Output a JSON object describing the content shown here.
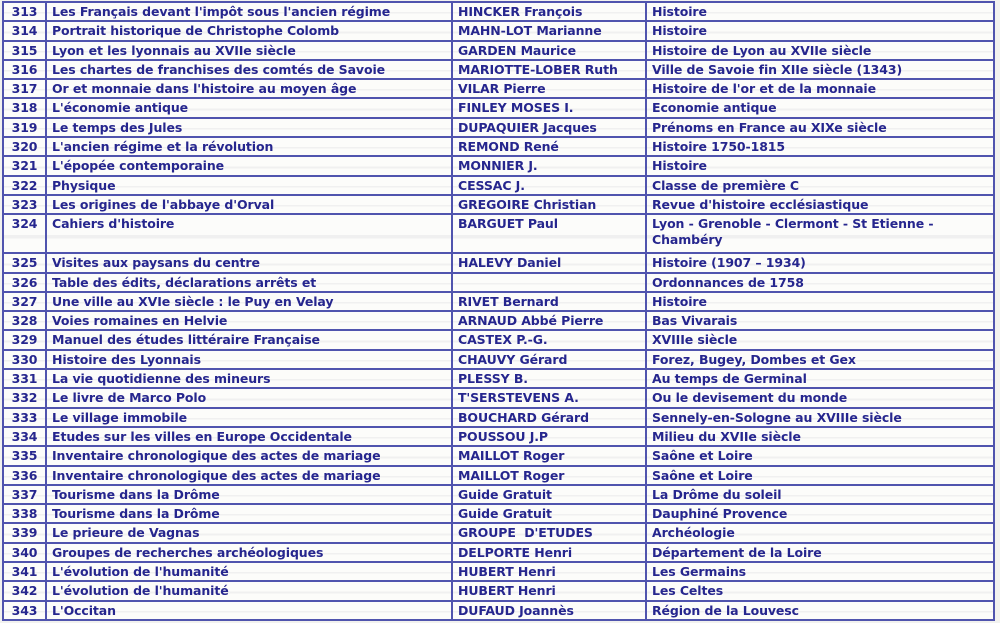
{
  "document": {
    "kind_label": "scanned catalog table",
    "colors": {
      "text": "#26268e",
      "grid": "#5054ae",
      "paper": "#fcfcfa",
      "page_background": "#f2f2ef"
    }
  },
  "table": {
    "rows": [
      {
        "num": "313",
        "title": "Les Français devant l'impôt sous l'ancien régime",
        "author": "HINCKER François",
        "subject": "Histoire",
        "tall": false
      },
      {
        "num": "314",
        "title": "Portrait historique de Christophe Colomb",
        "author": "MAHN-LOT Marianne",
        "subject": "Histoire",
        "tall": false
      },
      {
        "num": "315",
        "title": "Lyon et les lyonnais au XVIIe siècle",
        "author": "GARDEN Maurice",
        "subject": "Histoire de Lyon au XVIIe siècle",
        "tall": false
      },
      {
        "num": "316",
        "title": "Les chartes de franchises des comtés de Savoie",
        "author": "MARIOTTE-LOBER Ruth",
        "subject": "Ville de Savoie fin XIIe siècle (1343)",
        "tall": false
      },
      {
        "num": "317",
        "title": "Or et monnaie dans l'histoire au moyen âge",
        "author": "VILAR Pierre",
        "subject": "Histoire de l'or et de la monnaie",
        "tall": false
      },
      {
        "num": "318",
        "title": "L'économie antique",
        "author": "FINLEY MOSES I.",
        "subject": "Economie antique",
        "tall": false
      },
      {
        "num": "319",
        "title": "Le temps des Jules",
        "author": "DUPAQUIER Jacques",
        "subject": "Prénoms en France au XIXe siècle",
        "tall": false
      },
      {
        "num": "320",
        "title": "L'ancien régime et la révolution",
        "author": "REMOND René",
        "subject": "Histoire 1750-1815",
        "tall": false
      },
      {
        "num": "321",
        "title": "L'épopée contemporaine",
        "author": "MONNIER J.",
        "subject": "Histoire",
        "tall": false
      },
      {
        "num": "322",
        "title": "Physique",
        "author": "CESSAC J.",
        "subject": "Classe de première C",
        "tall": false
      },
      {
        "num": "323",
        "title": "Les origines de l'abbaye d'Orval",
        "author": "GREGOIRE Christian",
        "subject": "Revue d'histoire ecclésiastique",
        "tall": false
      },
      {
        "num": "324",
        "title": "Cahiers d'histoire",
        "author": "BARGUET Paul",
        "subject": "Lyon - Grenoble - Clermont - St Etienne -\nChambéry",
        "tall": true
      },
      {
        "num": "325",
        "title": "Visites aux paysans du centre",
        "author": "HALEVY Daniel",
        "subject": "Histoire (1907 – 1934)",
        "tall": false
      },
      {
        "num": "326",
        "title": "Table des édits, déclarations arrêts et",
        "author": "",
        "subject": "Ordonnances de 1758",
        "tall": false
      },
      {
        "num": "327",
        "title": "Une ville au XVIe siècle : le Puy en Velay",
        "author": "RIVET Bernard",
        "subject": "Histoire",
        "tall": false
      },
      {
        "num": "328",
        "title": "Voies romaines en Helvie",
        "author": "ARNAUD Abbé Pierre",
        "subject": "Bas Vivarais",
        "tall": false
      },
      {
        "num": "329",
        "title": "Manuel des études littéraire Française",
        "author": "CASTEX P.-G.",
        "subject": "XVIIIe siècle",
        "tall": false
      },
      {
        "num": "330",
        "title": "Histoire des Lyonnais",
        "author": "CHAUVY Gérard",
        "subject": "Forez, Bugey, Dombes et Gex",
        "tall": false
      },
      {
        "num": "331",
        "title": "La vie quotidienne des mineurs",
        "author": "PLESSY B.",
        "subject": "Au temps de Germinal",
        "tall": false
      },
      {
        "num": "332",
        "title": "Le livre de Marco Polo",
        "author": "T'SERSTEVENS A.",
        "subject": "Ou le devisement du monde",
        "tall": false
      },
      {
        "num": "333",
        "title": "Le village immobile",
        "author": "BOUCHARD Gérard",
        "subject": "Sennely-en-Sologne au XVIIIe siècle",
        "tall": false
      },
      {
        "num": "334",
        "title": "Etudes sur les villes en Europe Occidentale",
        "author": "POUSSOU J.P",
        "subject": "Milieu du XVIIe siècle",
        "tall": false
      },
      {
        "num": "335",
        "title": "Inventaire chronologique des actes de mariage",
        "author": "MAILLOT Roger",
        "subject": "Saône et Loire",
        "tall": false
      },
      {
        "num": "336",
        "title": "Inventaire chronologique des actes de mariage",
        "author": "MAILLOT Roger",
        "subject": "Saône et Loire",
        "tall": false
      },
      {
        "num": "337",
        "title": "Tourisme dans la Drôme",
        "author": "Guide Gratuit",
        "subject": "La Drôme du soleil",
        "tall": false
      },
      {
        "num": "338",
        "title": "Tourisme dans la Drôme",
        "author": "Guide Gratuit",
        "subject": "Dauphiné Provence",
        "tall": false
      },
      {
        "num": "339",
        "title": "Le prieure de Vagnas",
        "author": "GROUPE  D'ETUDES",
        "subject": "Archéologie",
        "tall": false
      },
      {
        "num": "340",
        "title": "Groupes de recherches archéologiques",
        "author": "DELPORTE Henri",
        "subject": "Département de la Loire",
        "tall": false
      },
      {
        "num": "341",
        "title": "L'évolution de l'humanité",
        "author": "HUBERT Henri",
        "subject": "Les Germains",
        "tall": false
      },
      {
        "num": "342",
        "title": "L'évolution de l'humanité",
        "author": "HUBERT Henri",
        "subject": "Les Celtes",
        "tall": false
      },
      {
        "num": "343",
        "title": "L'Occitan",
        "author": "DUFAUD Joannès",
        "subject": "Région de la Louvesc",
        "tall": false
      }
    ]
  }
}
